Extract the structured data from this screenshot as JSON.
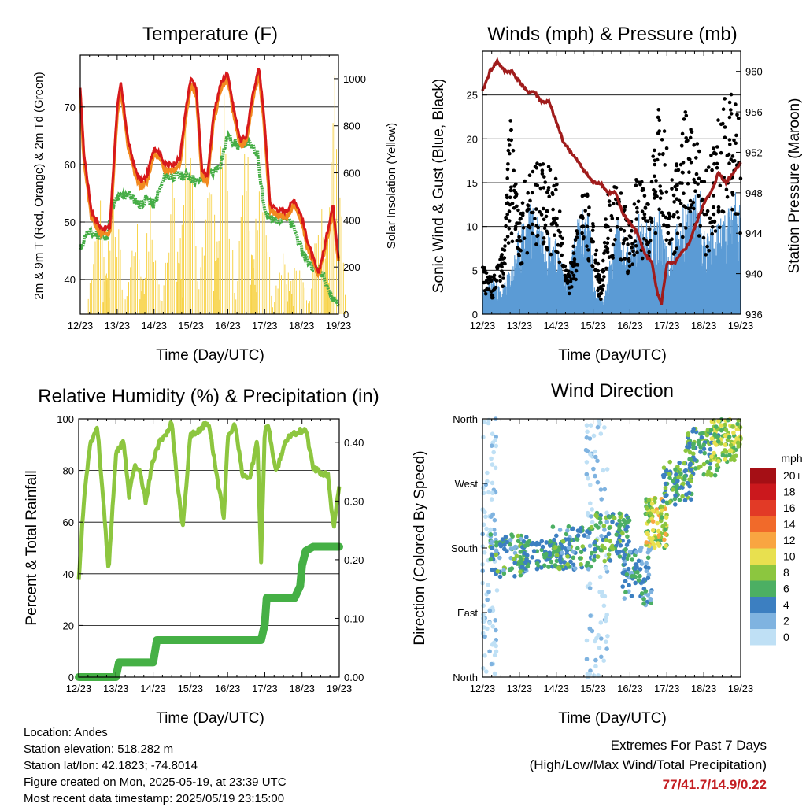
{
  "footer": {
    "location": "Location: Andes",
    "elevation": "Station elevation: 518.282 m",
    "latlon": "Station lat/lon: 42.1823; -74.8014",
    "created": "Figure created on Mon, 2025-05-19, at 23:39 UTC",
    "latest": "Most recent data timestamp: 2025/05/19 23:15:00",
    "extremes_title": "Extremes For Past 7 Days",
    "extremes_subtitle": "(High/Low/Max Wind/Total Precipitation)",
    "extremes_values": "77/41.7/14.9/0.22"
  },
  "colors": {
    "temp_2m": "#d7191c",
    "temp_9m": "#f28a1f",
    "dewpoint": "#45ad45",
    "solar": "#f7d34a",
    "wind": "#5b9bd5",
    "gust": "#000000",
    "pressure": "#a01c1c",
    "rh": "#8dc63f",
    "precip": "#45b045"
  },
  "chart_data": [
    {
      "id": "temperature",
      "type": "line",
      "title": "Temperature (F)",
      "xlabel": "Time (Day/UTC)",
      "ylabel": "2m & 9m T (Red, Orange) & 2m Td (Green)",
      "y2label": "Solar Insolation (Yellow)",
      "x_ticks": [
        "12/23",
        "13/23",
        "14/23",
        "15/23",
        "16/23",
        "17/23",
        "18/23",
        "19/23"
      ],
      "xlim": [
        0,
        7
      ],
      "ylim": [
        34,
        79
      ],
      "y_ticks": [
        40,
        50,
        60,
        70
      ],
      "y2lim": [
        0,
        1100
      ],
      "y2_ticks": [
        0,
        200,
        400,
        600,
        800,
        1000
      ],
      "grid": true,
      "series": [
        {
          "key": "t2m",
          "axis": "left",
          "color_key": "temp_2m",
          "x": [
            0.0,
            0.1,
            0.3,
            0.55,
            0.8,
            1.0,
            1.1,
            1.3,
            1.5,
            1.65,
            1.8,
            2.0,
            2.15,
            2.3,
            2.5,
            2.7,
            2.85,
            3.0,
            3.15,
            3.3,
            3.45,
            3.6,
            3.8,
            4.0,
            4.15,
            4.35,
            4.5,
            4.7,
            4.85,
            5.0,
            5.15,
            5.4,
            5.6,
            5.8,
            6.0,
            6.15,
            6.3,
            6.45,
            6.6,
            6.75,
            6.85,
            7.0
          ],
          "y": [
            73,
            62,
            52,
            49,
            49,
            70,
            74,
            64,
            59,
            57,
            58,
            63,
            62,
            60,
            60,
            61,
            69,
            75,
            73,
            59,
            58,
            68,
            74,
            76,
            70,
            64,
            65,
            73,
            77,
            67,
            53,
            52,
            52,
            54,
            51,
            47,
            44,
            41,
            45,
            50,
            53,
            44
          ]
        },
        {
          "key": "t9m",
          "axis": "left",
          "color_key": "temp_9m",
          "x": [
            0.0,
            0.1,
            0.3,
            0.55,
            0.8,
            1.0,
            1.1,
            1.3,
            1.5,
            1.65,
            1.8,
            2.0,
            2.15,
            2.3,
            2.5,
            2.7,
            2.85,
            3.0,
            3.15,
            3.3,
            3.45,
            3.6,
            3.8,
            4.0,
            4.15,
            4.35,
            4.5,
            4.7,
            4.85,
            5.0,
            5.15,
            5.4,
            5.6,
            5.8,
            6.0,
            6.15,
            6.3,
            6.45,
            6.6,
            6.75,
            6.85,
            7.0
          ],
          "y": [
            72,
            61,
            51,
            48,
            48,
            69,
            73,
            63,
            58,
            56,
            57,
            62,
            61,
            59,
            59,
            60,
            68,
            74,
            72,
            58,
            57,
            67,
            73,
            75,
            69,
            63,
            64,
            72,
            76,
            66,
            52,
            51,
            51,
            53,
            50,
            46,
            43,
            41,
            44,
            49,
            52,
            43
          ]
        },
        {
          "key": "td2m",
          "axis": "left",
          "color_key": "dewpoint",
          "x": [
            0.0,
            0.15,
            0.4,
            0.7,
            0.9,
            1.0,
            1.3,
            1.6,
            1.8,
            2.0,
            2.3,
            2.6,
            2.9,
            3.2,
            3.5,
            3.8,
            4.0,
            4.3,
            4.5,
            4.8,
            5.0,
            5.2,
            5.5,
            5.8,
            6.0,
            6.2,
            6.4,
            6.6,
            6.8,
            7.0
          ],
          "y": [
            45,
            48,
            48,
            47,
            53,
            54,
            55,
            53,
            54,
            53,
            58,
            58,
            58,
            57,
            58,
            60,
            65,
            63,
            64,
            62,
            52,
            50,
            51,
            49,
            45,
            43,
            42,
            41,
            37,
            36
          ]
        },
        {
          "key": "solar",
          "axis": "right",
          "color_key": "solar",
          "x": [
            0.0,
            0.3,
            0.5,
            0.7,
            0.9,
            1.0,
            1.1,
            1.3,
            1.5,
            1.7,
            1.9,
            2.0,
            2.1,
            2.3,
            2.5,
            2.7,
            2.9,
            3.0,
            3.1,
            3.3,
            3.5,
            3.7,
            3.9,
            4.0,
            4.1,
            4.3,
            4.5,
            4.7,
            4.9,
            5.0,
            5.1,
            5.3,
            5.5,
            5.7,
            5.9,
            6.0,
            6.1,
            6.3,
            6.5,
            6.7,
            6.9,
            7.0
          ],
          "y": [
            0,
            0,
            600,
            0,
            650,
            0,
            0,
            0,
            450,
            0,
            500,
            0,
            0,
            0,
            700,
            0,
            1050,
            0,
            0,
            0,
            850,
            0,
            1000,
            0,
            0,
            0,
            850,
            0,
            950,
            0,
            0,
            0,
            350,
            0,
            400,
            0,
            0,
            0,
            550,
            0,
            1060,
            0
          ]
        }
      ]
    },
    {
      "id": "winds",
      "type": "scatter",
      "title": "Winds (mph) & Pressure (mb)",
      "xlabel": "Time (Day/UTC)",
      "ylabel": "Sonic Wind & Gust (Blue, Black)",
      "y2label": "Station Pressure (Maroon)",
      "x_ticks": [
        "12/23",
        "13/23",
        "14/23",
        "15/23",
        "16/23",
        "17/23",
        "18/23",
        "19/23"
      ],
      "xlim": [
        0,
        7
      ],
      "ylim": [
        0,
        30
      ],
      "y_ticks": [
        0,
        5,
        10,
        15,
        20,
        25
      ],
      "y2lim": [
        936,
        962
      ],
      "y2_ticks": [
        936,
        940,
        944,
        948,
        952,
        956,
        960
      ],
      "grid": true,
      "series": [
        {
          "key": "wind",
          "axis": "left",
          "color_key": "wind",
          "x": [
            0.0,
            0.3,
            0.5,
            0.8,
            1.0,
            1.3,
            1.6,
            2.0,
            2.3,
            2.6,
            2.9,
            3.0,
            3.3,
            3.6,
            4.0,
            4.3,
            4.5,
            4.8,
            5.0,
            5.3,
            5.6,
            5.9,
            6.0,
            6.3,
            6.6,
            6.9,
            7.0
          ],
          "y": [
            2,
            3,
            2,
            4,
            7,
            9,
            8,
            6,
            3,
            8,
            9,
            3,
            1,
            8,
            5,
            9,
            7,
            9,
            5,
            8,
            9,
            11,
            7,
            7,
            8,
            10,
            9
          ]
        },
        {
          "key": "gust",
          "axis": "left",
          "color_key": "gust",
          "x": [
            0.0,
            0.3,
            0.55,
            0.75,
            0.9,
            1.0,
            1.2,
            1.4,
            1.7,
            2.0,
            2.3,
            2.55,
            2.8,
            3.0,
            3.2,
            3.4,
            3.7,
            4.0,
            4.2,
            4.5,
            4.8,
            4.95,
            5.1,
            5.3,
            5.5,
            5.8,
            6.0,
            6.2,
            6.5,
            6.8,
            7.0
          ],
          "y": [
            5,
            4,
            7,
            21,
            14,
            11,
            15,
            17,
            16,
            14,
            4,
            9,
            15,
            11,
            3,
            13,
            14,
            9,
            15,
            12,
            25,
            19,
            14,
            17,
            21,
            19,
            14,
            17,
            22,
            26,
            18
          ]
        },
        {
          "key": "pressure",
          "axis": "right",
          "color_key": "pressure",
          "x": [
            0.0,
            0.2,
            0.4,
            0.6,
            0.8,
            1.0,
            1.2,
            1.4,
            1.6,
            1.8,
            2.0,
            2.2,
            2.4,
            2.6,
            2.8,
            3.0,
            3.2,
            3.4,
            3.6,
            3.8,
            4.0,
            4.2,
            4.4,
            4.6,
            4.75,
            4.85,
            5.0,
            5.2,
            5.4,
            5.6,
            5.8,
            6.0,
            6.2,
            6.4,
            6.6,
            6.8,
            7.0
          ],
          "y": [
            958,
            960,
            961,
            960,
            960,
            959,
            958,
            958,
            957,
            957,
            955,
            953,
            952,
            951,
            950,
            949,
            949,
            948,
            948,
            946,
            945,
            944,
            942,
            941,
            938,
            937,
            941,
            941,
            942,
            943,
            945,
            947,
            948,
            950,
            949,
            950,
            951
          ]
        }
      ]
    },
    {
      "id": "humidity",
      "type": "line",
      "title": "Relative Humidity (%) & Precipitation (in)",
      "xlabel": "Time (Day/UTC)",
      "ylabel": "Percent & Total Rainfall",
      "x_ticks": [
        "12/23",
        "13/23",
        "14/23",
        "15/23",
        "16/23",
        "17/23",
        "18/23",
        "19/23"
      ],
      "xlim": [
        0,
        7
      ],
      "ylim": [
        0,
        100
      ],
      "y_ticks": [
        0,
        20,
        40,
        60,
        80,
        100
      ],
      "y2lim": [
        0,
        0.44
      ],
      "y2_ticks": [
        "0.00",
        "0.10",
        "0.20",
        "0.30",
        "0.40"
      ],
      "grid": true,
      "series": [
        {
          "key": "rh",
          "axis": "left",
          "color_key": "rh",
          "x": [
            0.0,
            0.15,
            0.3,
            0.5,
            0.65,
            0.8,
            1.0,
            1.2,
            1.35,
            1.5,
            1.65,
            1.8,
            2.0,
            2.2,
            2.4,
            2.5,
            2.65,
            2.8,
            3.0,
            3.2,
            3.4,
            3.5,
            3.7,
            3.9,
            4.0,
            4.2,
            4.4,
            4.6,
            4.8,
            4.9,
            5.0,
            5.1,
            5.3,
            5.5,
            5.7,
            5.9,
            6.1,
            6.3,
            6.5,
            6.7,
            6.85,
            7.0
          ],
          "y": [
            38,
            70,
            90,
            97,
            70,
            41,
            86,
            92,
            70,
            82,
            79,
            68,
            84,
            92,
            95,
            99,
            75,
            58,
            94,
            95,
            98,
            98,
            79,
            62,
            92,
            98,
            78,
            77,
            92,
            45,
            96,
            97,
            79,
            89,
            94,
            95,
            96,
            81,
            79,
            78,
            57,
            74
          ]
        },
        {
          "key": "precip",
          "axis": "right",
          "color_key": "precip",
          "x": [
            0.0,
            1.0,
            1.08,
            2.0,
            2.1,
            4.9,
            5.0,
            5.05,
            5.8,
            5.95,
            6.0,
            6.1,
            6.3,
            7.0
          ],
          "y": [
            0.0,
            0.0,
            0.025,
            0.025,
            0.063,
            0.063,
            0.09,
            0.135,
            0.135,
            0.155,
            0.19,
            0.215,
            0.222,
            0.222
          ]
        }
      ]
    },
    {
      "id": "wind_direction",
      "type": "scatter",
      "title": "Wind Direction",
      "xlabel": "Time (Day/UTC)",
      "ylabel": "Direction (Colored By Speed)",
      "x_ticks": [
        "12/23",
        "13/23",
        "14/23",
        "15/23",
        "16/23",
        "17/23",
        "18/23",
        "19/23"
      ],
      "xlim": [
        0,
        7
      ],
      "ylim": [
        0,
        360
      ],
      "y_ticks": [
        "North",
        "East",
        "South",
        "West",
        "North"
      ],
      "legend_title": "mph",
      "legend_labels": [
        "20+",
        "18",
        "16",
        "14",
        "12",
        "10",
        "8",
        "6",
        "4",
        "2",
        "0"
      ],
      "legend_colors": [
        "#a50f15",
        "#cb181d",
        "#e23a26",
        "#f16a2a",
        "#f9a541",
        "#e8e04f",
        "#8cc63f",
        "#4caf63",
        "#3c7fc1",
        "#7fb3e0",
        "#bfe0f5"
      ],
      "clusters": [
        {
          "x": [
            0.0,
            0.4
          ],
          "y": [
            0,
            360
          ],
          "speed": [
            0,
            3
          ]
        },
        {
          "x": [
            0.2,
            1.2
          ],
          "y": [
            140,
            200
          ],
          "speed": [
            3,
            9
          ]
        },
        {
          "x": [
            1.0,
            2.2
          ],
          "y": [
            150,
            190
          ],
          "speed": [
            4,
            8
          ]
        },
        {
          "x": [
            1.9,
            3.0
          ],
          "y": [
            150,
            210
          ],
          "speed": [
            3,
            9
          ]
        },
        {
          "x": [
            2.8,
            3.4
          ],
          "y": [
            0,
            360
          ],
          "speed": [
            0,
            3
          ]
        },
        {
          "x": [
            3.0,
            4.0
          ],
          "y": [
            160,
            230
          ],
          "speed": [
            4,
            10
          ]
        },
        {
          "x": [
            3.8,
            4.6
          ],
          "y": [
            100,
            190
          ],
          "speed": [
            2,
            8
          ]
        },
        {
          "x": [
            4.4,
            5.0
          ],
          "y": [
            180,
            250
          ],
          "speed": [
            6,
            14
          ]
        },
        {
          "x": [
            4.9,
            5.7
          ],
          "y": [
            240,
            300
          ],
          "speed": [
            4,
            10
          ]
        },
        {
          "x": [
            5.5,
            6.4
          ],
          "y": [
            280,
            350
          ],
          "speed": [
            4,
            10
          ]
        },
        {
          "x": [
            6.2,
            7.0
          ],
          "y": [
            300,
            360
          ],
          "speed": [
            6,
            12
          ]
        }
      ]
    }
  ]
}
